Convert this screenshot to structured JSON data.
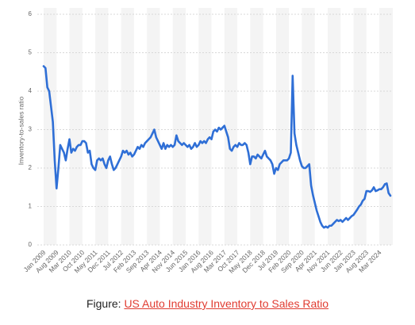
{
  "chart_data": {
    "type": "line",
    "ylabel": "Inventory-to-sales ratio",
    "ylim": [
      0,
      6
    ],
    "yticks": [
      0,
      1,
      2,
      3,
      4,
      5,
      6
    ],
    "grid": true,
    "categories": [
      "Jan 2009",
      null,
      null,
      null,
      null,
      null,
      null,
      "Aug 2009",
      null,
      null,
      null,
      null,
      null,
      null,
      "Mar 2010",
      null,
      null,
      null,
      null,
      null,
      null,
      "Oct 2010",
      null,
      null,
      null,
      null,
      null,
      null,
      "May 2011",
      null,
      null,
      null,
      null,
      null,
      null,
      "Dec 2011",
      null,
      null,
      null,
      null,
      null,
      null,
      "Jul 2012",
      null,
      null,
      null,
      null,
      null,
      null,
      "Feb 2013",
      null,
      null,
      null,
      null,
      null,
      null,
      "Sep 2013",
      null,
      null,
      null,
      null,
      null,
      null,
      "Apr 2014",
      null,
      null,
      null,
      null,
      null,
      null,
      "Nov 2014",
      null,
      null,
      null,
      null,
      null,
      null,
      "Jun 2015",
      null,
      null,
      null,
      null,
      null,
      null,
      "Jan 2016",
      null,
      null,
      null,
      null,
      null,
      null,
      "Aug 2016",
      null,
      null,
      null,
      null,
      null,
      null,
      "Mar 2017",
      null,
      null,
      null,
      null,
      null,
      null,
      "Oct 2017",
      null,
      null,
      null,
      null,
      null,
      null,
      "May 2018",
      null,
      null,
      null,
      null,
      null,
      null,
      "Dec 2018",
      null,
      null,
      null,
      null,
      null,
      null,
      "Jul 2019",
      null,
      null,
      null,
      null,
      null,
      null,
      "Feb 2020",
      null,
      null,
      null,
      null,
      null,
      null,
      "Sep 2020",
      null,
      null,
      null,
      null,
      null,
      null,
      "Apr 2021",
      null,
      null,
      null,
      null,
      null,
      null,
      "Nov 2021",
      null,
      null,
      null,
      null,
      null,
      null,
      "Jun 2022",
      null,
      null,
      null,
      null,
      null,
      null,
      "Jan 2023",
      null,
      null,
      null,
      null,
      null,
      null,
      "Aug 2023",
      null,
      null,
      null,
      null,
      null,
      null,
      "Mar 2024",
      null,
      null,
      null,
      null,
      null,
      null
    ],
    "series": [
      {
        "name": "Inventory-to-sales ratio",
        "color": "#2f6fd6",
        "values": [
          4.65,
          4.6,
          4.1,
          4.0,
          3.6,
          3.2,
          2.2,
          1.47,
          2.0,
          2.6,
          2.5,
          2.4,
          2.2,
          2.5,
          2.75,
          2.4,
          2.5,
          2.45,
          2.55,
          2.6,
          2.6,
          2.7,
          2.7,
          2.65,
          2.4,
          2.45,
          2.1,
          2.0,
          1.95,
          2.2,
          2.25,
          2.2,
          2.25,
          2.1,
          2.0,
          2.2,
          2.3,
          2.1,
          1.95,
          2.0,
          2.1,
          2.2,
          2.3,
          2.45,
          2.4,
          2.45,
          2.35,
          2.4,
          2.3,
          2.35,
          2.45,
          2.55,
          2.5,
          2.6,
          2.55,
          2.65,
          2.7,
          2.75,
          2.8,
          2.9,
          3.0,
          2.8,
          2.7,
          2.6,
          2.5,
          2.65,
          2.5,
          2.6,
          2.55,
          2.6,
          2.55,
          2.6,
          2.85,
          2.7,
          2.65,
          2.6,
          2.65,
          2.6,
          2.55,
          2.6,
          2.5,
          2.55,
          2.65,
          2.55,
          2.6,
          2.7,
          2.65,
          2.7,
          2.65,
          2.75,
          2.8,
          2.75,
          2.95,
          3.0,
          2.95,
          3.05,
          3.0,
          3.05,
          3.1,
          2.95,
          2.8,
          2.5,
          2.45,
          2.55,
          2.6,
          2.55,
          2.65,
          2.6,
          2.6,
          2.65,
          2.6,
          2.4,
          2.1,
          2.3,
          2.3,
          2.25,
          2.35,
          2.3,
          2.25,
          2.35,
          2.45,
          2.3,
          2.25,
          2.2,
          2.1,
          1.85,
          2.0,
          1.95,
          2.1,
          2.15,
          2.2,
          2.2,
          2.2,
          2.25,
          2.4,
          4.4,
          2.9,
          2.6,
          2.4,
          2.2,
          2.05,
          2.0,
          2.0,
          2.05,
          2.1,
          1.55,
          1.3,
          1.1,
          0.9,
          0.75,
          0.6,
          0.5,
          0.45,
          0.48,
          0.45,
          0.5,
          0.5,
          0.55,
          0.6,
          0.65,
          0.62,
          0.65,
          0.6,
          0.65,
          0.7,
          0.65,
          0.7,
          0.75,
          0.78,
          0.85,
          0.92,
          1.0,
          1.05,
          1.15,
          1.2,
          1.4,
          1.4,
          1.38,
          1.42,
          1.5,
          1.4,
          1.42,
          1.45,
          1.45,
          1.5,
          1.58,
          1.6,
          1.35,
          1.28
        ]
      }
    ]
  },
  "figure_caption": {
    "prefix": "Figure:",
    "link": "US Auto Industry Inventory to Sales Ratio"
  }
}
